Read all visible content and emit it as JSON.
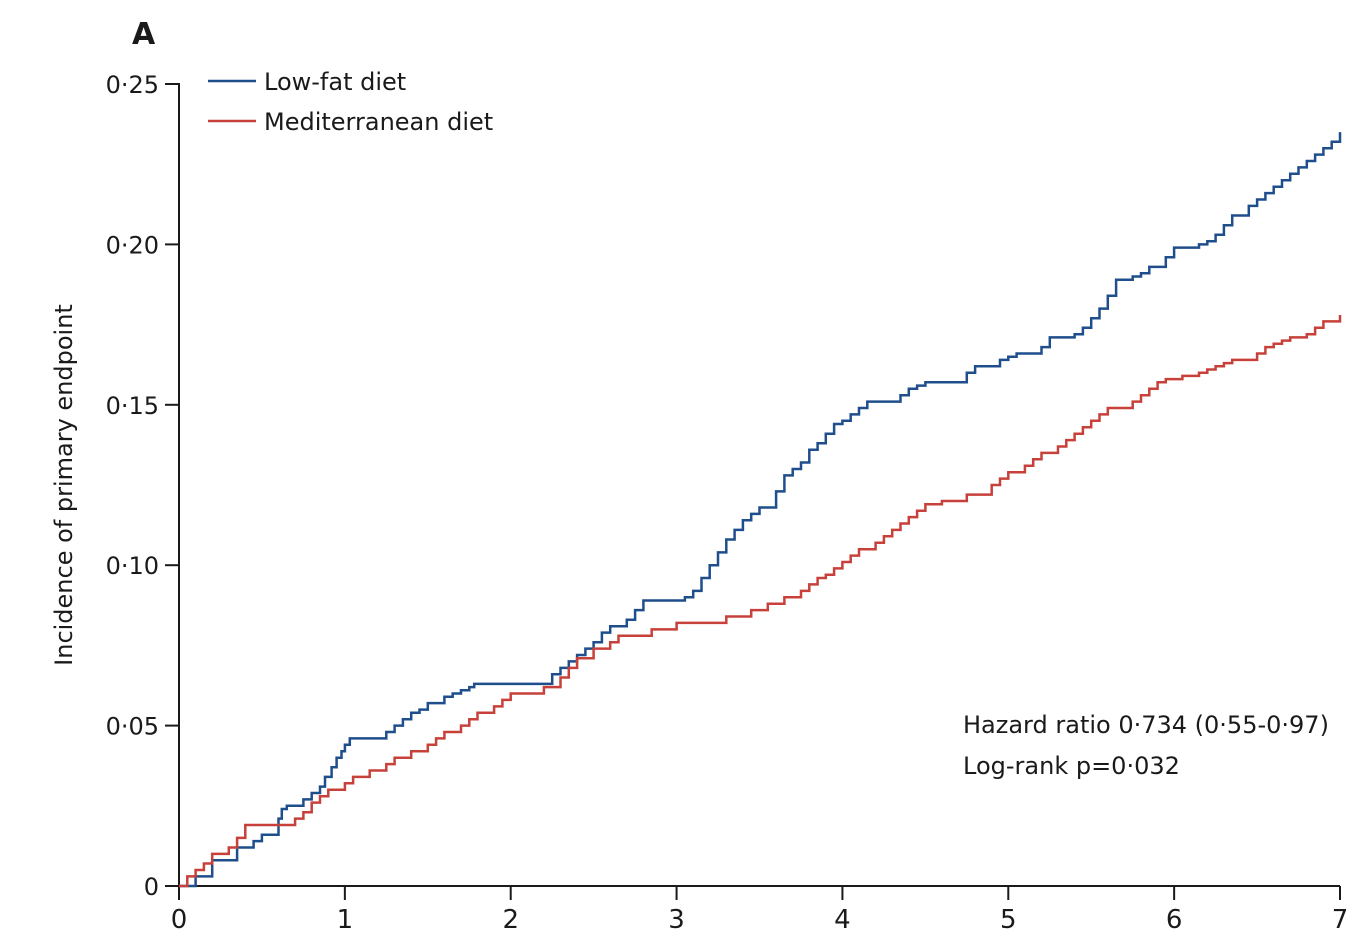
{
  "panel_label": "A",
  "chart_data": {
    "type": "line",
    "title": "",
    "xlabel": "",
    "ylabel": "Incidence of primary endpoint",
    "xlim": [
      0,
      7
    ],
    "ylim": [
      0,
      0.25
    ],
    "x_ticks": [
      0,
      1,
      2,
      3,
      4,
      5,
      6,
      7
    ],
    "x_tick_labels": [
      "0",
      "1",
      "2",
      "3",
      "4",
      "5",
      "6",
      "7"
    ],
    "y_ticks": [
      0,
      0.05,
      0.1,
      0.15,
      0.2,
      0.25
    ],
    "y_tick_labels": [
      "0",
      "0·05",
      "0·10",
      "0·15",
      "0·20",
      "0·25"
    ],
    "grid": false,
    "step": true,
    "legend_position": "top-left",
    "series": [
      {
        "name": "Low-fat diet",
        "color": "#1f4e8c",
        "x": [
          0,
          0.1,
          0.2,
          0.35,
          0.45,
          0.5,
          0.6,
          0.62,
          0.65,
          0.75,
          0.8,
          0.85,
          0.88,
          0.92,
          0.95,
          0.98,
          1.0,
          1.03,
          1.25,
          1.3,
          1.35,
          1.4,
          1.45,
          1.5,
          1.6,
          1.65,
          1.7,
          1.75,
          1.78,
          2.2,
          2.25,
          2.3,
          2.35,
          2.4,
          2.45,
          2.5,
          2.55,
          2.6,
          2.7,
          2.75,
          2.8,
          3.05,
          3.1,
          3.15,
          3.2,
          3.25,
          3.3,
          3.35,
          3.4,
          3.45,
          3.5,
          3.6,
          3.65,
          3.7,
          3.75,
          3.8,
          3.85,
          3.9,
          3.95,
          4.0,
          4.05,
          4.1,
          4.15,
          4.3,
          4.35,
          4.4,
          4.45,
          4.5,
          4.75,
          4.8,
          4.95,
          5.0,
          5.05,
          5.2,
          5.25,
          5.4,
          5.45,
          5.5,
          5.55,
          5.6,
          5.65,
          5.75,
          5.8,
          5.85,
          5.95,
          6.0,
          6.15,
          6.2,
          6.25,
          6.3,
          6.35,
          6.45,
          6.5,
          6.55,
          6.6,
          6.65,
          6.7,
          6.75,
          6.8,
          6.85,
          6.9,
          6.95,
          7.0
        ],
        "y": [
          0,
          0.003,
          0.008,
          0.012,
          0.014,
          0.016,
          0.021,
          0.024,
          0.025,
          0.027,
          0.029,
          0.031,
          0.034,
          0.037,
          0.04,
          0.042,
          0.044,
          0.046,
          0.048,
          0.05,
          0.052,
          0.054,
          0.055,
          0.057,
          0.059,
          0.06,
          0.061,
          0.062,
          0.063,
          0.063,
          0.066,
          0.068,
          0.07,
          0.072,
          0.074,
          0.076,
          0.079,
          0.081,
          0.083,
          0.086,
          0.089,
          0.09,
          0.092,
          0.096,
          0.1,
          0.104,
          0.108,
          0.111,
          0.114,
          0.116,
          0.118,
          0.123,
          0.128,
          0.13,
          0.132,
          0.136,
          0.138,
          0.141,
          0.144,
          0.145,
          0.147,
          0.149,
          0.151,
          0.151,
          0.153,
          0.155,
          0.156,
          0.157,
          0.16,
          0.162,
          0.164,
          0.165,
          0.166,
          0.168,
          0.171,
          0.172,
          0.174,
          0.177,
          0.18,
          0.184,
          0.189,
          0.19,
          0.191,
          0.193,
          0.196,
          0.199,
          0.2,
          0.201,
          0.203,
          0.206,
          0.209,
          0.212,
          0.214,
          0.216,
          0.218,
          0.22,
          0.222,
          0.224,
          0.226,
          0.228,
          0.23,
          0.232,
          0.235
        ]
      },
      {
        "name": "Mediterranean diet",
        "color": "#c8403a",
        "x": [
          0,
          0.05,
          0.1,
          0.15,
          0.2,
          0.3,
          0.35,
          0.4,
          0.7,
          0.75,
          0.8,
          0.85,
          0.9,
          1.0,
          1.05,
          1.15,
          1.25,
          1.3,
          1.4,
          1.5,
          1.55,
          1.6,
          1.7,
          1.75,
          1.8,
          1.9,
          1.95,
          2.0,
          2.2,
          2.3,
          2.35,
          2.4,
          2.5,
          2.6,
          2.65,
          2.85,
          3.0,
          3.3,
          3.45,
          3.55,
          3.65,
          3.75,
          3.8,
          3.85,
          3.9,
          3.95,
          4.0,
          4.05,
          4.1,
          4.2,
          4.25,
          4.3,
          4.35,
          4.4,
          4.45,
          4.5,
          4.6,
          4.75,
          4.9,
          4.95,
          5.0,
          5.1,
          5.15,
          5.2,
          5.3,
          5.35,
          5.4,
          5.45,
          5.5,
          5.55,
          5.6,
          5.75,
          5.8,
          5.85,
          5.9,
          5.95,
          6.05,
          6.15,
          6.2,
          6.25,
          6.3,
          6.35,
          6.5,
          6.55,
          6.6,
          6.65,
          6.7,
          6.8,
          6.85,
          6.9,
          7.0
        ],
        "y": [
          0,
          0.003,
          0.005,
          0.007,
          0.01,
          0.012,
          0.015,
          0.019,
          0.021,
          0.023,
          0.026,
          0.028,
          0.03,
          0.032,
          0.034,
          0.036,
          0.038,
          0.04,
          0.042,
          0.044,
          0.046,
          0.048,
          0.05,
          0.052,
          0.054,
          0.056,
          0.058,
          0.06,
          0.062,
          0.065,
          0.068,
          0.071,
          0.074,
          0.076,
          0.078,
          0.08,
          0.082,
          0.084,
          0.086,
          0.088,
          0.09,
          0.092,
          0.094,
          0.096,
          0.097,
          0.099,
          0.101,
          0.103,
          0.105,
          0.107,
          0.109,
          0.111,
          0.113,
          0.115,
          0.117,
          0.119,
          0.12,
          0.122,
          0.125,
          0.127,
          0.129,
          0.131,
          0.133,
          0.135,
          0.137,
          0.139,
          0.141,
          0.143,
          0.145,
          0.147,
          0.149,
          0.151,
          0.153,
          0.155,
          0.157,
          0.158,
          0.159,
          0.16,
          0.161,
          0.162,
          0.163,
          0.164,
          0.166,
          0.168,
          0.169,
          0.17,
          0.171,
          0.172,
          0.174,
          0.176,
          0.178
        ]
      }
    ],
    "annotations": [
      "Hazard ratio 0·734 (0·55-0·97)",
      "Log-rank p=0·032"
    ]
  }
}
